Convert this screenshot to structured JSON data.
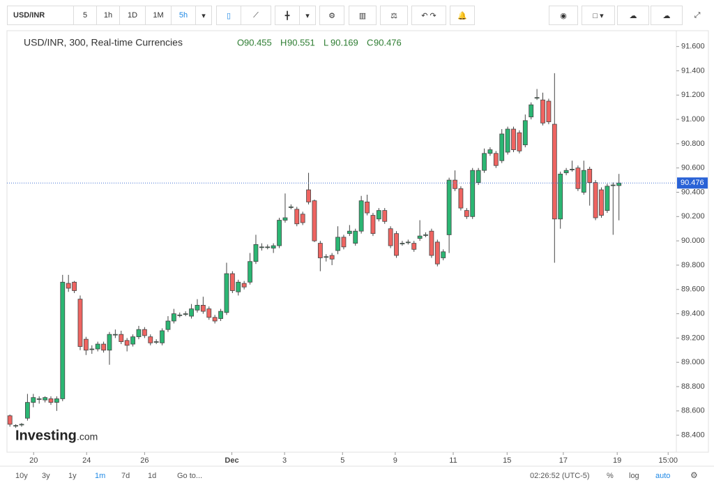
{
  "toolbar": {
    "symbol": "USD/INR",
    "intervals": [
      "5",
      "1h",
      "1D",
      "1M",
      "5h"
    ]
  },
  "chart_data": {
    "type": "candlestick",
    "title": "USD/INR, 300, Real-time Currencies",
    "ohlc_labels": [
      "O",
      "H",
      "L",
      "C"
    ],
    "open": [
      88.56,
      88.48,
      88.49,
      88.54,
      88.67,
      88.7,
      88.69,
      88.7,
      88.67,
      88.7,
      89.65,
      89.66,
      89.52,
      89.19,
      89.11,
      89.11,
      89.15,
      89.1,
      89.23,
      89.23,
      89.18,
      89.15,
      89.21,
      89.27,
      89.21,
      89.17,
      89.16,
      89.27,
      89.34,
      89.39,
      89.4,
      89.38,
      89.43,
      89.47,
      89.44,
      89.37,
      89.36,
      89.41,
      89.73,
      89.58,
      89.65,
      89.66,
      89.83,
      89.95,
      89.95,
      89.94,
      89.96,
      90.17,
      90.28,
      90.26,
      90.22,
      90.42,
      90.33,
      89.98,
      89.87,
      89.88,
      89.92,
      90.03,
      90.06,
      89.98,
      90.08,
      90.32,
      90.21,
      90.18,
      90.25,
      90.1,
      90.06,
      89.98,
      89.99,
      89.98,
      90.02,
      90.05,
      90.08,
      89.99,
      89.86,
      90.05,
      90.5,
      90.43,
      90.25,
      90.2,
      90.48,
      90.58,
      90.72,
      90.72,
      90.66,
      90.73,
      90.92,
      90.89,
      90.79,
      91.02,
      91.18,
      91.16,
      91.15,
      90.96,
      90.18,
      90.56,
      90.59,
      90.6,
      90.4,
      90.59,
      90.48,
      90.42,
      90.25,
      90.46,
      90.455
    ],
    "high": [
      88.57,
      88.49,
      88.5,
      88.74,
      88.74,
      88.72,
      88.72,
      88.72,
      88.72,
      89.72,
      89.72,
      89.67,
      89.55,
      89.21,
      89.14,
      89.17,
      89.17,
      89.25,
      89.27,
      89.26,
      89.2,
      89.23,
      89.3,
      89.29,
      89.23,
      89.19,
      89.28,
      89.38,
      89.44,
      89.41,
      89.42,
      89.48,
      89.52,
      89.54,
      89.46,
      89.39,
      89.44,
      89.82,
      89.75,
      89.68,
      89.67,
      89.9,
      90.05,
      89.98,
      89.97,
      89.98,
      90.19,
      90.39,
      90.3,
      90.28,
      90.24,
      90.56,
      90.34,
      90.0,
      89.89,
      89.9,
      90.12,
      90.05,
      90.13,
      90.1,
      90.37,
      90.38,
      90.23,
      90.27,
      90.27,
      90.12,
      90.08,
      90.0,
      90.01,
      90.0,
      90.17,
      90.07,
      90.1,
      90.01,
      89.93,
      90.52,
      90.58,
      90.45,
      90.27,
      90.6,
      90.6,
      90.76,
      90.77,
      90.74,
      90.92,
      90.94,
      90.94,
      90.91,
      91.04,
      91.14,
      91.25,
      91.22,
      91.17,
      91.38,
      90.57,
      90.6,
      90.66,
      90.62,
      90.66,
      90.61,
      90.5,
      90.44,
      90.47,
      90.48,
      90.551
    ],
    "low": [
      88.47,
      88.46,
      88.47,
      88.52,
      88.63,
      88.66,
      88.67,
      88.65,
      88.6,
      88.68,
      89.58,
      89.57,
      89.1,
      89.06,
      89.07,
      89.09,
      89.08,
      88.98,
      89.2,
      89.15,
      89.09,
      89.13,
      89.19,
      89.2,
      89.14,
      89.15,
      89.14,
      89.25,
      89.32,
      89.37,
      89.38,
      89.36,
      89.41,
      89.4,
      89.35,
      89.32,
      89.34,
      89.39,
      89.57,
      89.55,
      89.6,
      89.64,
      89.81,
      89.92,
      89.93,
      89.9,
      89.94,
      90.15,
      90.26,
      90.12,
      90.13,
      90.3,
      89.99,
      89.75,
      89.83,
      89.8,
      89.89,
      89.93,
      90.04,
      89.96,
      90.06,
      90.21,
      90.04,
      90.16,
      90.14,
      89.94,
      89.86,
      89.96,
      89.97,
      89.91,
      90.0,
      90.03,
      89.86,
      89.79,
      89.84,
      89.9,
      90.41,
      90.25,
      90.18,
      90.18,
      90.46,
      90.56,
      90.7,
      90.6,
      90.64,
      90.71,
      90.73,
      90.72,
      90.77,
      91.0,
      91.16,
      90.95,
      90.96,
      89.82,
      90.1,
      90.54,
      90.57,
      90.41,
      90.38,
      90.29,
      90.17,
      90.19,
      90.23,
      90.05,
      90.169
    ],
    "close": [
      88.49,
      88.48,
      88.49,
      88.67,
      88.71,
      88.7,
      88.71,
      88.67,
      88.7,
      89.66,
      89.61,
      89.59,
      89.13,
      89.1,
      89.11,
      89.15,
      89.1,
      89.23,
      89.23,
      89.17,
      89.14,
      89.21,
      89.27,
      89.22,
      89.16,
      89.17,
      89.26,
      89.34,
      89.4,
      89.39,
      89.4,
      89.44,
      89.47,
      89.42,
      89.37,
      89.34,
      89.42,
      89.73,
      89.59,
      89.66,
      89.62,
      89.83,
      89.97,
      89.95,
      89.95,
      89.96,
      90.17,
      90.19,
      90.28,
      90.14,
      90.15,
      90.32,
      90.0,
      89.86,
      89.87,
      89.85,
      90.03,
      89.95,
      90.08,
      90.08,
      90.33,
      90.23,
      90.06,
      90.25,
      90.16,
      89.96,
      89.88,
      89.98,
      89.99,
      89.93,
      90.04,
      90.05,
      89.88,
      89.81,
      89.91,
      90.5,
      90.43,
      90.27,
      90.2,
      90.58,
      90.58,
      90.72,
      90.75,
      90.62,
      90.88,
      90.92,
      90.75,
      90.74,
      90.99,
      91.12,
      91.18,
      90.97,
      90.98,
      90.18,
      90.55,
      90.58,
      90.59,
      90.43,
      90.58,
      90.48,
      90.19,
      90.21,
      90.45,
      90.46,
      90.476
    ],
    "up_color": "#2bb673",
    "down_color": "#ef6461",
    "xlim": [
      -0.5,
      113.8
    ],
    "xticks": [
      {
        "value": 4.05,
        "label": "20"
      },
      {
        "value": 13.1,
        "label": "24"
      },
      {
        "value": 23.0,
        "label": "26"
      },
      {
        "value": 37.9,
        "label": "Dec"
      },
      {
        "value": 46.9,
        "label": "3"
      },
      {
        "value": 56.8,
        "label": "5"
      },
      {
        "value": 65.8,
        "label": "9"
      },
      {
        "value": 75.7,
        "label": "11"
      },
      {
        "value": 84.9,
        "label": "15"
      },
      {
        "value": 94.5,
        "label": "17"
      },
      {
        "value": 103.7,
        "label": "19"
      },
      {
        "value": 112.4,
        "label": "15:00"
      }
    ],
    "ylim": [
      88.26,
      91.73
    ],
    "yticks": [
      {
        "value": 88.4,
        "label": "88.400"
      },
      {
        "value": 88.6,
        "label": "88.600"
      },
      {
        "value": 88.8,
        "label": "88.800"
      },
      {
        "value": 89.0,
        "label": "89.000"
      },
      {
        "value": 89.2,
        "label": "89.200"
      },
      {
        "value": 89.4,
        "label": "89.400"
      },
      {
        "value": 89.6,
        "label": "89.600"
      },
      {
        "value": 89.8,
        "label": "89.800"
      },
      {
        "value": 90.0,
        "label": "90.000"
      },
      {
        "value": 90.2,
        "label": "90.200"
      },
      {
        "value": 90.4,
        "label": "90.400"
      },
      {
        "value": 90.6,
        "label": "90.600"
      },
      {
        "value": 90.8,
        "label": "90.800"
      },
      {
        "value": 91.0,
        "label": "91.000"
      },
      {
        "value": 91.2,
        "label": "91.200"
      },
      {
        "value": 91.4,
        "label": "91.400"
      },
      {
        "value": 91.6,
        "label": "91.600"
      }
    ],
    "last_price_line": true,
    "watermark": [
      "Investing",
      ".com"
    ]
  },
  "footer": {
    "ranges": [
      "10y",
      "3y",
      "1y",
      "1m",
      "7d",
      "1d"
    ],
    "goto": "Go to...",
    "time": "02:26:52 (UTC-5)",
    "scale_options": [
      "%",
      "log",
      "auto"
    ]
  }
}
